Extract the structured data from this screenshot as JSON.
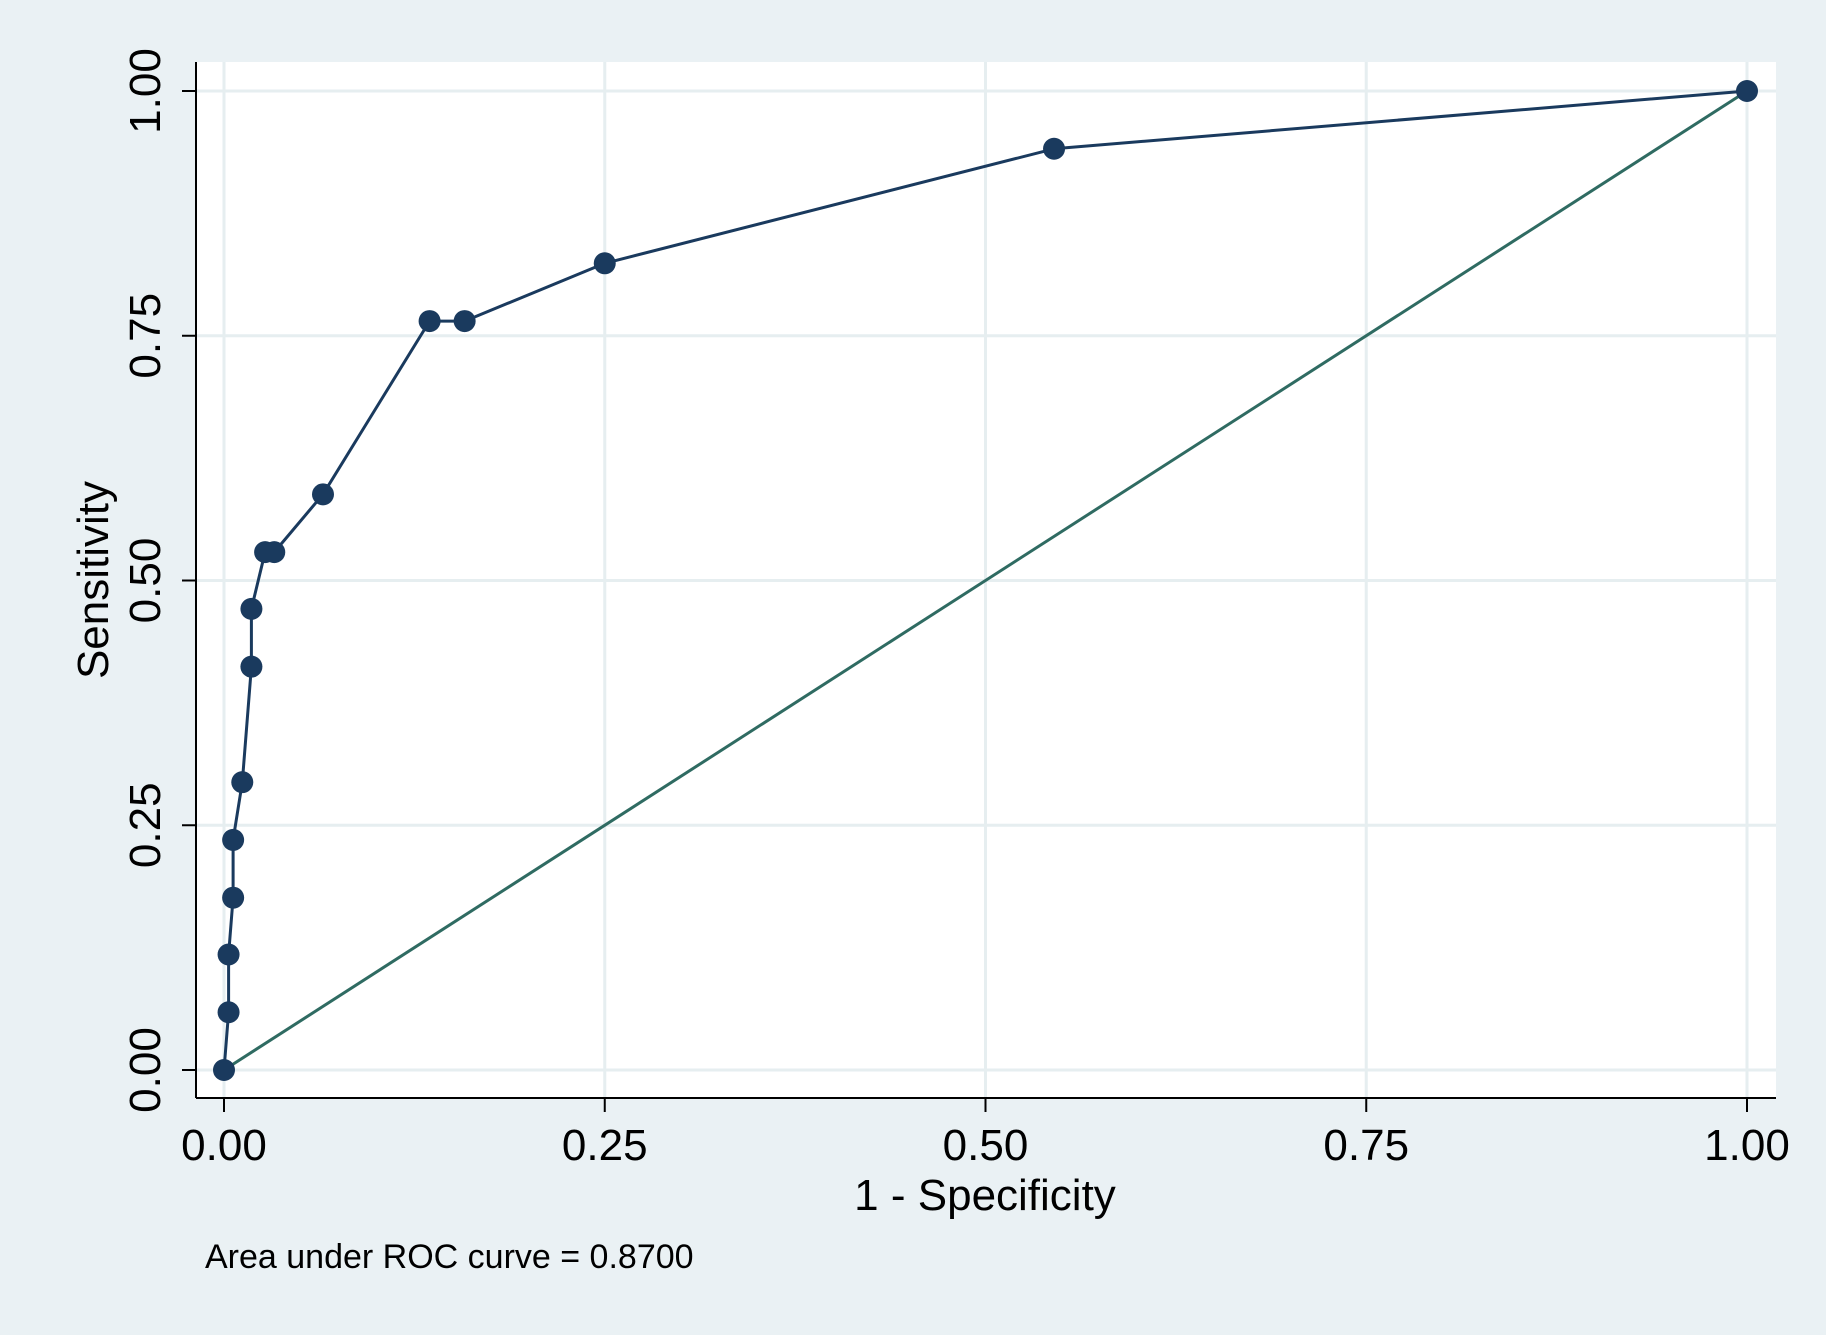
{
  "chart_data": {
    "type": "line",
    "title": "",
    "xlabel": "1 - Specificity",
    "ylabel": "Sensitivity",
    "xlim": [
      0,
      1
    ],
    "ylim": [
      0,
      1
    ],
    "x_ticks": [
      0,
      0.25,
      0.5,
      0.75,
      1
    ],
    "y_ticks": [
      0,
      0.25,
      0.5,
      0.75,
      1
    ],
    "x_tick_labels": [
      "0.00",
      "0.25",
      "0.50",
      "0.75",
      "1.00"
    ],
    "y_tick_labels": [
      "0.00",
      "0.25",
      "0.50",
      "0.75",
      "1.00"
    ],
    "grid": true,
    "legend": "none",
    "series": [
      {
        "style": "line-with-markers",
        "color": "#1a3a5e",
        "x": [
          0,
          0.003,
          0.003,
          0.006,
          0.006,
          0.012,
          0.018,
          0.018,
          0.027,
          0.033,
          0.065,
          0.135,
          0.158,
          0.25,
          0.545,
          1
        ],
        "y": [
          0,
          0.059,
          0.118,
          0.176,
          0.235,
          0.294,
          0.412,
          0.471,
          0.529,
          0.529,
          0.588,
          0.765,
          0.765,
          0.824,
          0.941,
          1
        ]
      },
      {
        "style": "reference-line",
        "color": "#2f6b62",
        "x": [
          0,
          1
        ],
        "y": [
          0,
          1
        ]
      }
    ],
    "annotation": "Area under ROC curve = 0.8700",
    "colors": {
      "outer_background": "#eaf1f4",
      "plot_background": "#ffffff",
      "grid": "#e6eef0",
      "axis": "#000000"
    }
  }
}
